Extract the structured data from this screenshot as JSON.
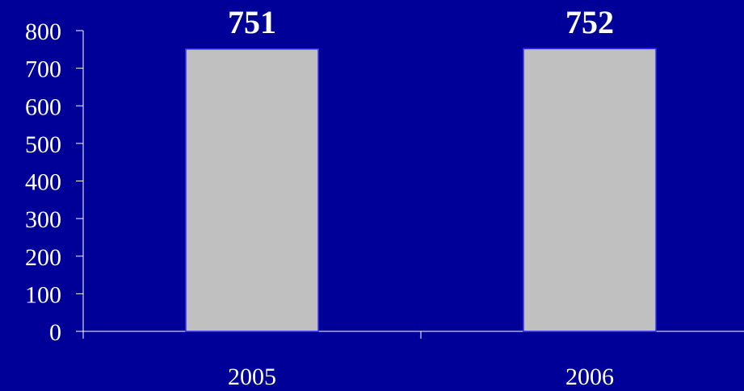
{
  "chart_data": {
    "type": "bar",
    "categories": [
      "2005",
      "2006"
    ],
    "values": [
      751,
      752
    ],
    "data_labels": [
      "751",
      "752"
    ],
    "title": "",
    "xlabel": "",
    "ylabel": "",
    "ylim": [
      0,
      800
    ],
    "yticks": [
      0,
      100,
      200,
      300,
      400,
      500,
      600,
      700,
      800
    ],
    "grid": false,
    "legend": "none",
    "colors": {
      "background": "#000099",
      "bar_fill": "#c0c0c0",
      "bar_stroke": "#3333ff",
      "axis": "#ffffff",
      "text": "#ffffff"
    }
  }
}
